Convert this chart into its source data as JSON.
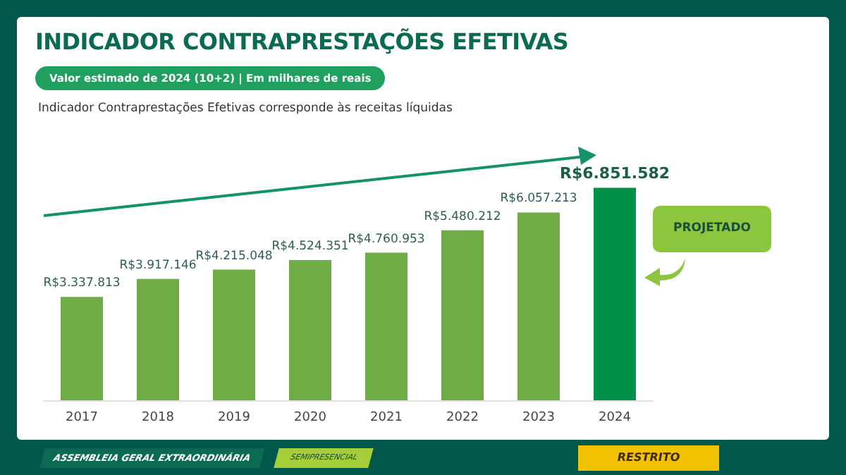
{
  "chart_data": {
    "type": "bar",
    "title": "INDICADOR CONTRAPRESTAÇÕES EFETIVAS",
    "subtitle": "Valor estimado de 2024 (10+2) | Em milhares de reais",
    "categories": [
      "2017",
      "2018",
      "2019",
      "2020",
      "2021",
      "2022",
      "2023",
      "2024"
    ],
    "values": [
      3337813,
      3917146,
      4215048,
      4524351,
      4760953,
      5480212,
      6057213,
      6851582
    ],
    "value_labels": [
      "R$3.337.813",
      "R$3.917.146",
      "R$4.215.048",
      "R$4.524.351",
      "R$4.760.953",
      "R$5.480.212",
      "R$6.057.213",
      "R$6.851.582"
    ],
    "colors": [
      "#70ad47",
      "#70ad47",
      "#70ad47",
      "#70ad47",
      "#70ad47",
      "#70ad47",
      "#70ad47",
      "#00904a"
    ],
    "annotations": [
      "Indicador Contraprestações Efetivas corresponde às receitas líquidas",
      "PROJETADO",
      "ASSEMBLEIA GERAL EXTRAORDINÁRIA",
      "SEMIPRESENCIAL",
      "RESTRITO"
    ]
  }
}
